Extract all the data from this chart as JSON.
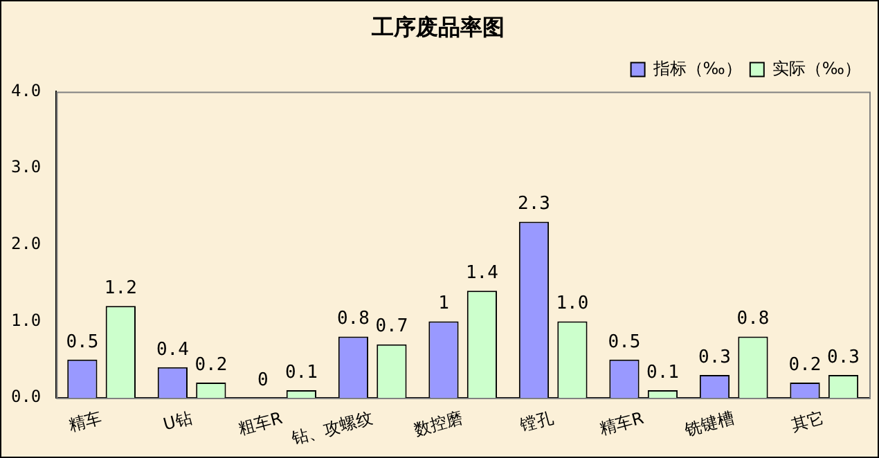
{
  "chart_data": {
    "type": "bar",
    "title": "工序废品率图",
    "categories": [
      "精车",
      "U钻",
      "粗车R",
      "钻、攻螺纹",
      "数控磨",
      "镗孔",
      "精车R",
      "铣键槽",
      "其它"
    ],
    "series": [
      {
        "name": "指标（‰）",
        "color": "#9999ff",
        "values": [
          0.5,
          0.4,
          0,
          0.8,
          1,
          2.3,
          0.5,
          0.3,
          0.2
        ],
        "value_labels": [
          "0.5",
          "0.4",
          "0",
          "0.8",
          "1",
          "2.3",
          "0.5",
          "0.3",
          "0.2"
        ]
      },
      {
        "name": "实际（‰）",
        "color": "#ccffcc",
        "values": [
          1.2,
          0.2,
          0.1,
          0.7,
          1.4,
          1.0,
          0.1,
          0.8,
          0.3
        ],
        "value_labels": [
          "1.2",
          "0.2",
          "0.1",
          "0.7",
          "1.4",
          "1.0",
          "0.1",
          "0.8",
          "0.3"
        ]
      }
    ],
    "ylim": [
      0,
      4
    ],
    "yticks": [
      {
        "value": 0,
        "label": "0.0"
      },
      {
        "value": 1,
        "label": "1.0"
      },
      {
        "value": 2,
        "label": "2.0"
      },
      {
        "value": 3,
        "label": "3.0"
      },
      {
        "value": 4,
        "label": "4.0"
      }
    ],
    "grid": false,
    "legend": "top right"
  }
}
